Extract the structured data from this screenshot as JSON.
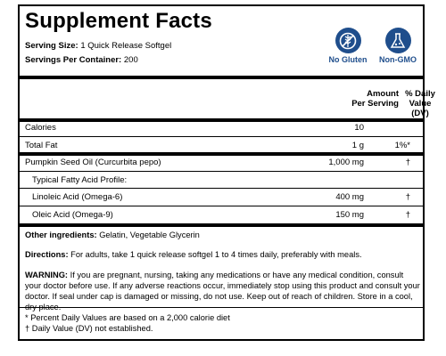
{
  "title": "Supplement Facts",
  "serving_size": {
    "label": "Serving Size:",
    "value": "1 Quick Release Softgel"
  },
  "servings_per_container": {
    "label": "Servings Per Container:",
    "value": "200"
  },
  "badges": [
    {
      "label": "No Gluten",
      "icon": "no-gluten-icon"
    },
    {
      "label": "Non-GMO",
      "icon": "non-gmo-icon"
    }
  ],
  "columns": {
    "amount_line1": "Amount",
    "amount_line2": "Per Serving",
    "dv_line1": "% Daily",
    "dv_line2": "Value",
    "dv_line3": "(DV)"
  },
  "rows": [
    {
      "label": "Calories",
      "amount": "10",
      "dv": ""
    },
    {
      "label": "Total Fat",
      "amount": "1 g",
      "dv": "1%*"
    },
    {
      "label": "Pumpkin Seed Oil (Curcurbita pepo)",
      "amount": "1,000 mg",
      "dv": "†"
    },
    {
      "label": "Typical Fatty Acid Profile:",
      "amount": "",
      "dv": ""
    },
    {
      "label": "Linoleic Acid (Omega-6)",
      "amount": "400 mg",
      "dv": "†"
    },
    {
      "label": "Oleic Acid (Omega-9)",
      "amount": "150 mg",
      "dv": "†"
    }
  ],
  "other_ingredients": {
    "label": "Other ingredients:",
    "value": "Gelatin, Vegetable Glycerin"
  },
  "directions": {
    "label": "Directions:",
    "value": "For adults, take 1 quick release softgel 1 to 4 times daily, preferably with meals."
  },
  "warning": {
    "label": "WARNING:",
    "value": "If you are pregnant, nursing, taking any medications or have any medical condition, consult your doctor before use. If any adverse reactions occur, immediately stop using this product and consult your doctor. If seal under cap is damaged or missing, do not use. Keep out of reach of children. Store in a cool, dry place."
  },
  "footnotes": [
    "* Percent Daily Values are based on a 2,000 calorie diet",
    "† Daily Value (DV) not established."
  ],
  "colors": {
    "badge": "#1f4e8c"
  }
}
